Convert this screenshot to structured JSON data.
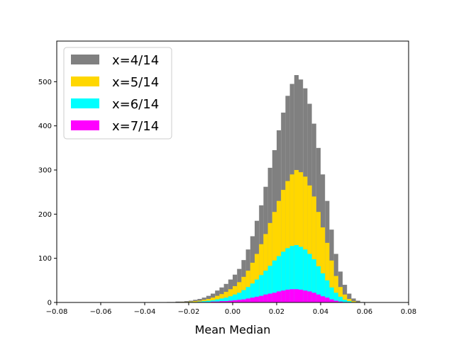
{
  "chart_data": {
    "type": "bar",
    "title": "",
    "xlabel": "Mean Median",
    "ylabel": "",
    "xlim": [
      -0.08,
      0.08
    ],
    "ylim": [
      0,
      592
    ],
    "grid": false,
    "legend_placement": "top-left",
    "x_ticks": [
      -0.08,
      -0.06,
      -0.04,
      -0.02,
      0.0,
      0.02,
      0.04,
      0.06,
      0.08
    ],
    "x_tick_labels": [
      "−0.08",
      "−0.06",
      "−0.04",
      "−0.02",
      "0.00",
      "0.02",
      "0.04",
      "0.06",
      "0.08"
    ],
    "y_ticks": [
      0,
      100,
      200,
      300,
      400,
      500
    ],
    "y_tick_labels": [
      "0",
      "100",
      "200",
      "300",
      "400",
      "500"
    ],
    "bin_width": 0.002,
    "x": [
      -0.03,
      -0.028,
      -0.026,
      -0.024,
      -0.022,
      -0.02,
      -0.018,
      -0.016,
      -0.014,
      -0.012,
      -0.01,
      -0.008,
      -0.006,
      -0.004,
      -0.002,
      0.0,
      0.002,
      0.004,
      0.006,
      0.008,
      0.01,
      0.012,
      0.014,
      0.016,
      0.018,
      0.02,
      0.022,
      0.024,
      0.026,
      0.028,
      0.03,
      0.032,
      0.034,
      0.036,
      0.038,
      0.04,
      0.042,
      0.044,
      0.046,
      0.048,
      0.05,
      0.052,
      0.054,
      0.056,
      0.058
    ],
    "series": [
      {
        "name": "x=4/14",
        "color": "#808080",
        "values": [
          1,
          1,
          2,
          2,
          3,
          4,
          6,
          8,
          11,
          15,
          20,
          27,
          34,
          42,
          52,
          63,
          76,
          96,
          120,
          150,
          185,
          220,
          262,
          305,
          345,
          390,
          430,
          468,
          495,
          515,
          505,
          485,
          450,
          405,
          350,
          290,
          230,
          165,
          110,
          70,
          40,
          20,
          9,
          4,
          1
        ]
      },
      {
        "name": "x=5/14",
        "color": "#FFD700",
        "values": [
          0,
          0,
          0,
          1,
          1,
          2,
          3,
          4,
          6,
          8,
          11,
          15,
          19,
          24,
          30,
          37,
          46,
          58,
          72,
          90,
          110,
          132,
          155,
          180,
          205,
          230,
          255,
          275,
          290,
          300,
          295,
          285,
          265,
          240,
          205,
          170,
          135,
          95,
          60,
          35,
          18,
          8,
          3,
          1,
          0
        ]
      },
      {
        "name": "x=6/14",
        "color": "#00FFFF",
        "values": [
          0,
          0,
          0,
          0,
          0,
          1,
          1,
          2,
          3,
          4,
          5,
          7,
          9,
          11,
          14,
          18,
          22,
          28,
          35,
          43,
          52,
          62,
          72,
          83,
          95,
          105,
          115,
          123,
          128,
          130,
          126,
          120,
          110,
          98,
          82,
          66,
          50,
          34,
          22,
          13,
          6,
          3,
          1,
          0,
          0
        ]
      },
      {
        "name": "x=7/14",
        "color": "#FF00FF",
        "values": [
          0,
          0,
          0,
          0,
          0,
          0,
          0,
          1,
          1,
          1,
          2,
          2,
          3,
          3,
          4,
          5,
          6,
          7,
          9,
          11,
          13,
          15,
          18,
          20,
          22,
          25,
          27,
          29,
          30,
          30,
          29,
          27,
          25,
          22,
          18,
          14,
          11,
          7,
          4,
          2,
          1,
          0,
          0,
          0,
          0
        ]
      }
    ]
  }
}
